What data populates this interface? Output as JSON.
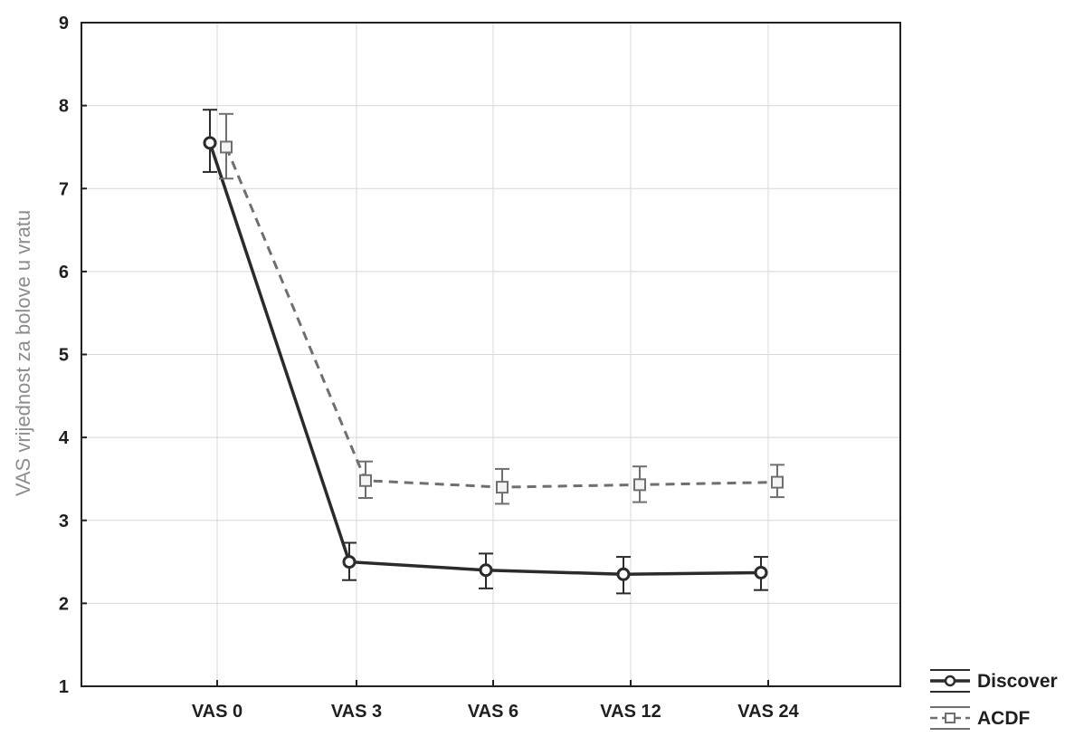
{
  "chart_data": {
    "type": "line",
    "title": "",
    "xlabel": "",
    "ylabel": "VAS vrijednost za bolove u vratu",
    "ylim": [
      1,
      9
    ],
    "yticks": [
      1,
      2,
      3,
      4,
      5,
      6,
      7,
      8,
      9
    ],
    "categories": [
      "VAS 0",
      "VAS 3",
      "VAS 6",
      "VAS 12",
      "VAS 24"
    ],
    "grid": true,
    "legend_position": "bottom-right outside",
    "series": [
      {
        "name": "Discover",
        "values": [
          7.55,
          2.5,
          2.4,
          2.35,
          2.37
        ],
        "error_low": [
          7.2,
          2.28,
          2.18,
          2.12,
          2.16
        ],
        "error_high": [
          7.95,
          2.73,
          2.6,
          2.56,
          2.56
        ],
        "style": "solid",
        "marker": "circle",
        "color": "#2b2b2b"
      },
      {
        "name": "ACDF",
        "values": [
          7.5,
          3.48,
          3.4,
          3.43,
          3.46
        ],
        "error_low": [
          7.12,
          3.27,
          3.2,
          3.22,
          3.28
        ],
        "error_high": [
          7.9,
          3.71,
          3.62,
          3.65,
          3.67
        ],
        "style": "dashed",
        "marker": "square",
        "color": "#6f6f6f"
      }
    ]
  }
}
